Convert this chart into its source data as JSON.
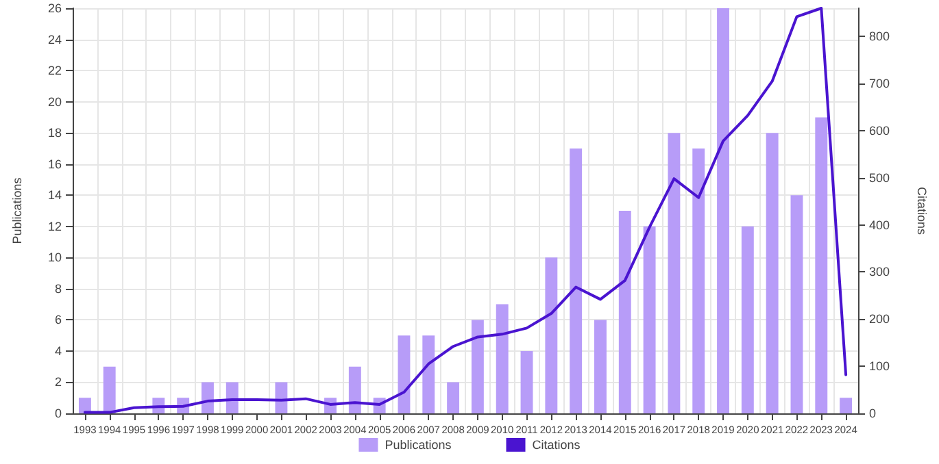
{
  "chart_data": {
    "type": "bar",
    "ylabel": "Publications",
    "y2label": "Citations",
    "categories": [
      "1993",
      "1994",
      "1995",
      "1996",
      "1997",
      "1998",
      "1999",
      "2000",
      "2001",
      "2002",
      "2003",
      "2004",
      "2005",
      "2006",
      "2007",
      "2008",
      "2009",
      "2010",
      "2011",
      "2012",
      "2013",
      "2014",
      "2015",
      "2016",
      "2017",
      "2018",
      "2019",
      "2020",
      "2021",
      "2022",
      "2023",
      "2024"
    ],
    "series": [
      {
        "name": "Publications",
        "color": "#b79cf8",
        "values": [
          1,
          3,
          0,
          1,
          1,
          2,
          2,
          0,
          2,
          0,
          1,
          3,
          1,
          5,
          5,
          2,
          6,
          7,
          4,
          10,
          17,
          6,
          13,
          12,
          18,
          17,
          26,
          12,
          18,
          14,
          19,
          1
        ]
      },
      {
        "name": "Citations",
        "type": "line",
        "axis": "y2",
        "color": "#4a14d0",
        "values": [
          2,
          2,
          12,
          14,
          15,
          26,
          29,
          29,
          28,
          31,
          19,
          23,
          19,
          45,
          105,
          142,
          162,
          168,
          181,
          212,
          268,
          242,
          282,
          395,
          498,
          458,
          578,
          632,
          705,
          842,
          860,
          82
        ]
      }
    ],
    "ylim": [
      0,
      26
    ],
    "yticks": [
      0,
      2,
      4,
      6,
      8,
      10,
      12,
      14,
      16,
      18,
      20,
      22,
      24,
      26
    ],
    "y2lim": [
      0,
      860
    ],
    "y2ticks": [
      0,
      100,
      200,
      300,
      400,
      500,
      600,
      700,
      800
    ],
    "grid": true,
    "legend": "bottom",
    "marker": "none",
    "line_style": "solid"
  }
}
